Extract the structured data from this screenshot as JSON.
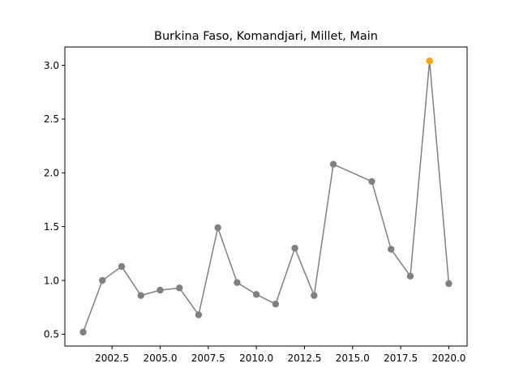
{
  "chart_data": {
    "type": "line",
    "title": "Burkina Faso, Komandjari, Millet, Main",
    "xlabel": "",
    "ylabel": "",
    "xlim": [
      2000.05,
      2020.95
    ],
    "ylim": [
      0.39,
      3.17
    ],
    "x_ticks": [
      2002.5,
      2005.0,
      2007.5,
      2010.0,
      2012.5,
      2015.0,
      2017.5,
      2020.0
    ],
    "x_tick_labels": [
      "2002.5",
      "2005.0",
      "2007.5",
      "2010.0",
      "2012.5",
      "2015.0",
      "2017.5",
      "2020.0"
    ],
    "y_ticks": [
      0.5,
      1.0,
      1.5,
      2.0,
      2.5,
      3.0
    ],
    "y_tick_labels": [
      "0.5",
      "1.0",
      "1.5",
      "2.0",
      "2.5",
      "3.0"
    ],
    "grid": false,
    "legend": "none",
    "series": [
      {
        "color": "#808080",
        "x": [
          2001,
          2002,
          2003,
          2004,
          2005,
          2006,
          2007,
          2008,
          2009,
          2010,
          2011,
          2012,
          2013,
          2014,
          2016,
          2017,
          2018,
          2019,
          2020
        ],
        "values": [
          0.52,
          1.0,
          1.13,
          0.86,
          0.91,
          0.93,
          0.68,
          1.49,
          0.98,
          0.87,
          0.78,
          1.3,
          0.86,
          2.08,
          1.92,
          1.29,
          1.04,
          3.04,
          0.97
        ]
      }
    ],
    "highlight": {
      "x": 2019,
      "y": 3.04,
      "color": "#ffa500"
    }
  }
}
